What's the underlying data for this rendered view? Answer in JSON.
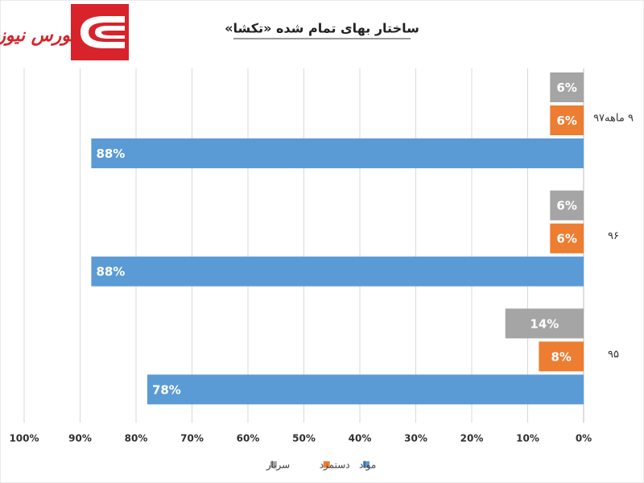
{
  "logo": "بورس نیوز",
  "chart_data": {
    "type": "barh",
    "title": "ساختار بهای تمام شده «تکشا»",
    "categories": [
      "۹۵",
      "۹۶",
      "۹ ماهه۹۷"
    ],
    "series": [
      {
        "name": "مواد",
        "color": "#5b9bd5",
        "values": [
          78,
          88,
          88
        ],
        "value_labels": [
          "78%",
          "88%",
          "88%"
        ]
      },
      {
        "name": "دستمزد",
        "color": "#ed7d31",
        "values": [
          8,
          6,
          6
        ],
        "value_labels": [
          "8%",
          "6%",
          "6%"
        ]
      },
      {
        "name": "سربار",
        "color": "#a5a5a5",
        "values": [
          14,
          6,
          6
        ],
        "value_labels": [
          "14%",
          "6%",
          "6%"
        ]
      }
    ],
    "xlim": [
      0,
      100
    ],
    "xticks": [
      {
        "value": 0,
        "label": "0%"
      },
      {
        "value": 10,
        "label": "10%"
      },
      {
        "value": 20,
        "label": "20%"
      },
      {
        "value": 30,
        "label": "30%"
      },
      {
        "value": 40,
        "label": "40%"
      },
      {
        "value": 50,
        "label": "50%"
      },
      {
        "value": 60,
        "label": "60%"
      },
      {
        "value": 70,
        "label": "70%"
      },
      {
        "value": 80,
        "label": "80%"
      },
      {
        "value": 90,
        "label": "90%"
      },
      {
        "value": 100,
        "label": "100%"
      }
    ],
    "x_reversed": true,
    "grid": true,
    "legend": "bottom"
  }
}
